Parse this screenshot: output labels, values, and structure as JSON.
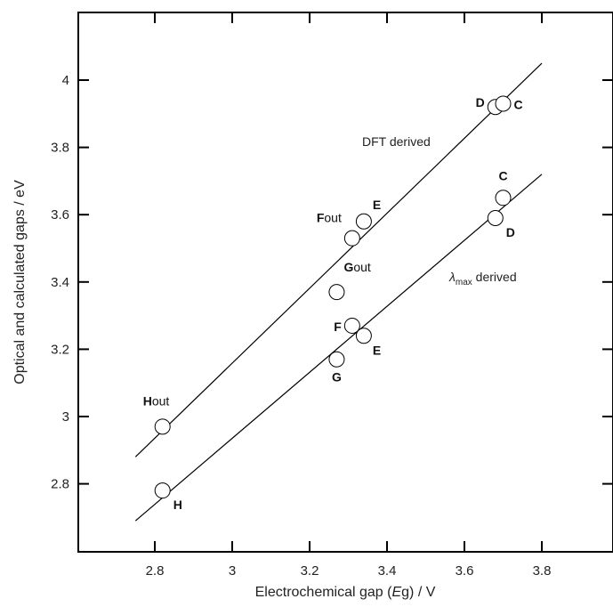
{
  "chart_data": {
    "type": "scatter",
    "xlabel_pre": "Electrochemical gap (",
    "xlabel_italic": "E",
    "xlabel_post": "g) / V",
    "ylabel": "Optical and calculated gaps / eV",
    "xlim": [
      2.6,
      4.0
    ],
    "ylim": [
      2.6,
      4.2
    ],
    "xticks": [
      2.8,
      3.0,
      3.2,
      3.4,
      3.6,
      3.8
    ],
    "xtick_labels": [
      "2.8",
      "3",
      "3.2",
      "3.4",
      "3.6",
      "3.8"
    ],
    "yticks": [
      2.8,
      3.0,
      3.2,
      3.4,
      3.6,
      3.8,
      4.0
    ],
    "ytick_labels": [
      "2.8",
      "3",
      "3.2",
      "3.4",
      "3.6",
      "3.8",
      "4"
    ],
    "grid": false,
    "series": [
      {
        "name": "DFT derived",
        "fit_line": {
          "x": [
            2.75,
            3.8
          ],
          "y": [
            2.88,
            4.05
          ]
        },
        "points": [
          {
            "label_bold": "H",
            "label_rest": "out",
            "x": 2.82,
            "y": 2.97
          },
          {
            "label_bold": "G",
            "label_rest": "out",
            "x": 3.27,
            "y": 3.37
          },
          {
            "label_bold": "F",
            "label_rest": "out",
            "x": 3.31,
            "y": 3.53
          },
          {
            "label_bold": "E",
            "label_rest": "",
            "x": 3.34,
            "y": 3.58
          },
          {
            "label_bold": "D",
            "label_rest": "",
            "x": 3.68,
            "y": 3.92
          },
          {
            "label_bold": "C",
            "label_rest": "",
            "x": 3.7,
            "y": 3.93
          }
        ]
      },
      {
        "name_symbol": "λ",
        "name_sub": "max",
        "name_rest": " derived",
        "fit_line": {
          "x": [
            2.75,
            3.8
          ],
          "y": [
            2.69,
            3.72
          ]
        },
        "points": [
          {
            "label_bold": "H",
            "label_rest": "",
            "x": 2.82,
            "y": 2.78
          },
          {
            "label_bold": "G",
            "label_rest": "",
            "x": 3.27,
            "y": 3.17
          },
          {
            "label_bold": "F",
            "label_rest": "",
            "x": 3.31,
            "y": 3.27
          },
          {
            "label_bold": "E",
            "label_rest": "",
            "x": 3.34,
            "y": 3.24
          },
          {
            "label_bold": "D",
            "label_rest": "",
            "x": 3.68,
            "y": 3.59
          },
          {
            "label_bold": "C",
            "label_rest": "",
            "x": 3.7,
            "y": 3.65
          }
        ]
      }
    ]
  }
}
